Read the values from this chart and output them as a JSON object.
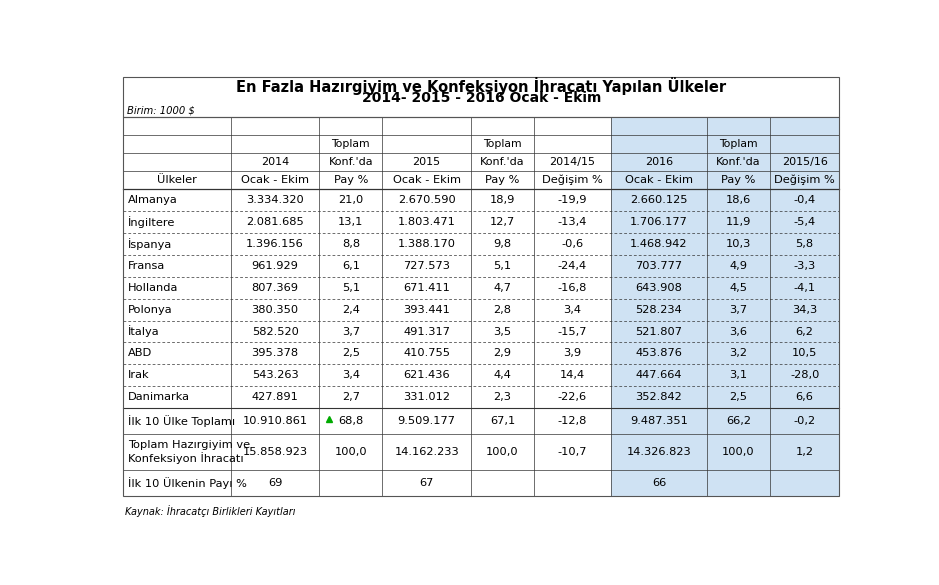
{
  "title1": "En Fazla Hazırgiyim ve Konfeksiyon İhracatı Yapılan Ülkeler",
  "title2": "2014- 2015 - 2016 Ocak - Ekim",
  "unit_label": "Birim: 1000 $",
  "source_label": "Kaynak: İhracatçı Birlikleri Kayıtları",
  "header_row1": [
    "",
    "",
    "Toplam",
    "",
    "Toplam",
    "",
    "",
    "Toplam",
    ""
  ],
  "header_row2": [
    "",
    "2014",
    "Konf.'da",
    "2015",
    "Konf.'da",
    "2014/15",
    "2016",
    "Konf.'da",
    "2015/16"
  ],
  "header_row3": [
    "",
    "Ocak - Ekim",
    "Pay %",
    "Ocak - Ekim",
    "Pay %",
    "Değişim %",
    "Ocak - Ekim",
    "Pay %",
    "Değişim %"
  ],
  "header_row0_left": [
    "Ülkeler"
  ],
  "rows": [
    [
      "Almanya",
      "3.334.320",
      "21,0",
      "2.670.590",
      "18,9",
      "-19,9",
      "2.660.125",
      "18,6",
      "-0,4"
    ],
    [
      "İngiltere",
      "2.081.685",
      "13,1",
      "1.803.471",
      "12,7",
      "-13,4",
      "1.706.177",
      "11,9",
      "-5,4"
    ],
    [
      "İspanya",
      "1.396.156",
      "8,8",
      "1.388.170",
      "9,8",
      "-0,6",
      "1.468.942",
      "10,3",
      "5,8"
    ],
    [
      "Fransa",
      "961.929",
      "6,1",
      "727.573",
      "5,1",
      "-24,4",
      "703.777",
      "4,9",
      "-3,3"
    ],
    [
      "Hollanda",
      "807.369",
      "5,1",
      "671.411",
      "4,7",
      "-16,8",
      "643.908",
      "4,5",
      "-4,1"
    ],
    [
      "Polonya",
      "380.350",
      "2,4",
      "393.441",
      "2,8",
      "3,4",
      "528.234",
      "3,7",
      "34,3"
    ],
    [
      "İtalya",
      "582.520",
      "3,7",
      "491.317",
      "3,5",
      "-15,7",
      "521.807",
      "3,6",
      "6,2"
    ],
    [
      "ABD",
      "395.378",
      "2,5",
      "410.755",
      "2,9",
      "3,9",
      "453.876",
      "3,2",
      "10,5"
    ],
    [
      "Irak",
      "543.263",
      "3,4",
      "621.436",
      "4,4",
      "14,4",
      "447.664",
      "3,1",
      "-28,0"
    ],
    [
      "Danimarka",
      "427.891",
      "2,7",
      "331.012",
      "2,3",
      "-22,6",
      "352.842",
      "2,5",
      "6,6"
    ]
  ],
  "summary_row1": [
    "İlk 10 Ülke Toplamı",
    "10.910.861",
    "68,8",
    "9.509.177",
    "67,1",
    "-12,8",
    "9.487.351",
    "66,2",
    "-0,2"
  ],
  "summary_row2": [
    "Toplam Hazırgiyim ve\nKonfeksiyon İhracatı",
    "15.858.923",
    "100,0",
    "14.162.233",
    "100,0",
    "-10,7",
    "14.326.823",
    "100,0",
    "1,2"
  ],
  "summary_row3": [
    "İlk 10 Ülkenin Payı %",
    "69",
    "",
    "67",
    "",
    "",
    "66",
    "",
    ""
  ],
  "highlight_cols": [
    6,
    7,
    8
  ],
  "highlight_color": "#cfe2f3",
  "col_widths_rel": [
    1.4,
    1.15,
    0.82,
    1.15,
    0.82,
    1.0,
    1.25,
    0.82,
    0.9
  ]
}
